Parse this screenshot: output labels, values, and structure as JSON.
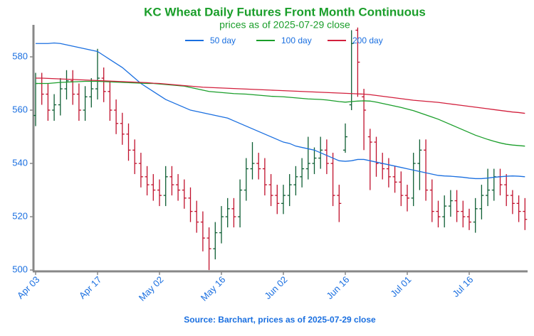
{
  "chart_data": {
    "type": "ohlc",
    "title": "KC Wheat Daily Futures Front Month Continuous",
    "subtitle": "prices as of 2025-07-29 close",
    "source": "Source: Barchart, prices as of 2025-07-29 close",
    "categories": [
      "Apr 03",
      null,
      null,
      null,
      null,
      null,
      null,
      null,
      null,
      null,
      "Apr 17",
      null,
      null,
      null,
      null,
      null,
      null,
      null,
      null,
      null,
      "May 02",
      null,
      null,
      null,
      null,
      null,
      null,
      null,
      null,
      null,
      "May 16",
      null,
      null,
      null,
      null,
      null,
      null,
      null,
      null,
      null,
      "Jun 02",
      null,
      null,
      null,
      null,
      null,
      null,
      null,
      null,
      null,
      "Jun 16",
      null,
      null,
      null,
      null,
      null,
      null,
      null,
      null,
      null,
      "Jul 01",
      null,
      null,
      null,
      null,
      null,
      null,
      null,
      null,
      null,
      "Jul 16",
      null,
      null,
      null,
      null,
      null,
      null,
      null,
      null,
      null
    ],
    "open": [
      558,
      570,
      566,
      560,
      562,
      568,
      571,
      566,
      560,
      565,
      568,
      572,
      567,
      560,
      555,
      551,
      545,
      540,
      535,
      532,
      530,
      528,
      535,
      532,
      530,
      527,
      522,
      518,
      512,
      508,
      514,
      520,
      523,
      520,
      530,
      538,
      540,
      538,
      532,
      528,
      525,
      528,
      532,
      535,
      538,
      540,
      542,
      545,
      540,
      528,
      545,
      562,
      590,
      565,
      550,
      548,
      540,
      538,
      535,
      533,
      528,
      527,
      540,
      545,
      530,
      522,
      520,
      524,
      526,
      522,
      520,
      518,
      523,
      528,
      530,
      535,
      532,
      528,
      525,
      522
    ],
    "high": [
      574,
      574,
      570,
      566,
      572,
      575,
      575,
      570,
      569,
      572,
      583,
      576,
      571,
      564,
      559,
      555,
      549,
      544,
      539,
      536,
      534,
      539,
      539,
      536,
      534,
      531,
      526,
      522,
      516,
      518,
      524,
      527,
      527,
      534,
      542,
      548,
      544,
      542,
      536,
      532,
      532,
      536,
      539,
      542,
      550,
      546,
      550,
      549,
      544,
      532,
      555,
      590,
      591,
      568,
      553,
      550,
      544,
      542,
      539,
      537,
      532,
      544,
      549,
      549,
      534,
      526,
      528,
      530,
      530,
      526,
      523,
      527,
      532,
      538,
      538,
      538,
      536,
      530,
      528,
      527
    ],
    "low": [
      554,
      562,
      556,
      556,
      558,
      564,
      562,
      556,
      556,
      561,
      564,
      563,
      556,
      551,
      547,
      541,
      536,
      531,
      528,
      526,
      524,
      524,
      528,
      526,
      523,
      518,
      514,
      507,
      500,
      504,
      510,
      516,
      516,
      516,
      526,
      534,
      534,
      528,
      524,
      521,
      521,
      524,
      528,
      531,
      534,
      536,
      538,
      536,
      524,
      518,
      544,
      560,
      565,
      545,
      530,
      535,
      534,
      531,
      529,
      524,
      522,
      524,
      530,
      526,
      518,
      516,
      516,
      520,
      518,
      516,
      515,
      514,
      519,
      524,
      526,
      528,
      524,
      521,
      518,
      515
    ],
    "close": [
      570,
      566,
      560,
      562,
      568,
      571,
      566,
      560,
      565,
      568,
      572,
      567,
      560,
      555,
      551,
      545,
      540,
      535,
      532,
      530,
      528,
      535,
      532,
      530,
      527,
      522,
      518,
      512,
      508,
      514,
      520,
      523,
      520,
      530,
      538,
      540,
      538,
      532,
      528,
      525,
      528,
      532,
      535,
      538,
      540,
      542,
      545,
      540,
      528,
      525,
      550,
      585,
      578,
      560,
      548,
      540,
      538,
      535,
      533,
      528,
      527,
      540,
      545,
      530,
      522,
      520,
      524,
      526,
      522,
      520,
      518,
      523,
      528,
      530,
      535,
      532,
      528,
      525,
      522,
      519
    ],
    "up_color": "#0d5e33",
    "down_color": "#c0102c",
    "series": [
      {
        "name": "50 day",
        "color": "#1a6fe0",
        "values": [
          585,
          585,
          585,
          585.2,
          585,
          584.5,
          584,
          583.5,
          583,
          582.5,
          582,
          580.5,
          579,
          577.5,
          576,
          574,
          572,
          570,
          568.5,
          567,
          565.5,
          564,
          563,
          562,
          561,
          560,
          559.5,
          559,
          558.5,
          558,
          557.5,
          557,
          556,
          555,
          554,
          553,
          552,
          551,
          550,
          549,
          548,
          547.5,
          546.5,
          546,
          545.5,
          545,
          544,
          543,
          542,
          541,
          540.8,
          541,
          541.5,
          541.5,
          541,
          540.5,
          540,
          539.5,
          539,
          538.5,
          538,
          537.5,
          537,
          536.5,
          536,
          535.5,
          535.3,
          535.2,
          535,
          534.8,
          534.5,
          534.3,
          534.3,
          534.5,
          534.8,
          535,
          535.2,
          535.3,
          535.2,
          535
        ]
      },
      {
        "name": "100 day",
        "color": "#1a9e2a",
        "values": [
          570,
          570,
          570,
          570.2,
          570.4,
          570.5,
          570.6,
          570.7,
          570.8,
          570.8,
          570.8,
          570.7,
          570.6,
          570.5,
          570.4,
          570.3,
          570.2,
          570.1,
          570,
          570,
          569.8,
          569.6,
          569.4,
          569.2,
          569,
          568.5,
          568,
          567.5,
          567,
          566.8,
          566.6,
          566.4,
          566.2,
          566.1,
          566,
          565.8,
          565.6,
          565.4,
          565.2,
          565.1,
          565,
          564.8,
          564.6,
          564.4,
          564.2,
          564.1,
          564,
          563.8,
          563.5,
          563.2,
          563,
          563.2,
          563.4,
          563.5,
          563.4,
          563,
          562.5,
          562,
          561.5,
          561,
          560.4,
          559.8,
          559,
          558.2,
          557.4,
          556.6,
          555.6,
          554.6,
          553.6,
          552.6,
          551.6,
          550.6,
          549.8,
          549,
          548.3,
          547.7,
          547.2,
          546.9,
          546.7,
          546.5
        ]
      },
      {
        "name": "200 day",
        "color": "#d21f3c",
        "values": [
          572,
          572,
          571.9,
          571.8,
          571.7,
          571.6,
          571.5,
          571.4,
          571.3,
          571.2,
          571.1,
          571,
          570.9,
          570.8,
          570.7,
          570.6,
          570.5,
          570.4,
          570.3,
          570.1,
          570,
          569.8,
          569.6,
          569.4,
          569.2,
          569,
          568.8,
          568.6,
          568.5,
          568.4,
          568.3,
          568.2,
          568.1,
          568,
          567.9,
          567.8,
          567.7,
          567.6,
          567.5,
          567.4,
          567.3,
          567.2,
          567.1,
          567,
          566.9,
          566.8,
          566.7,
          566.6,
          566.5,
          566.4,
          566.3,
          566.2,
          566.1,
          566,
          565.8,
          565.5,
          565.2,
          564.9,
          564.6,
          564.3,
          564,
          563.7,
          563.5,
          563.3,
          563.1,
          562.9,
          562.6,
          562.3,
          562,
          561.7,
          561.4,
          561.1,
          560.8,
          560.5,
          560.2,
          559.9,
          559.6,
          559.3,
          559.1,
          558.8
        ]
      }
    ],
    "ylim": [
      499.5,
      592
    ],
    "yticks": [
      500,
      520,
      540,
      560,
      580
    ]
  }
}
